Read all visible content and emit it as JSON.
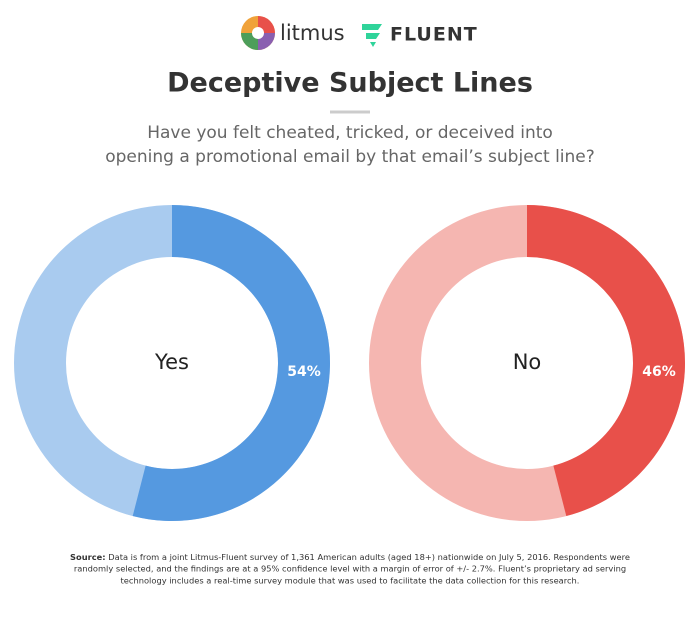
{
  "logos": [
    "litmus",
    "FLUENT"
  ],
  "title": "Deceptive Subject Lines",
  "subtitle": [
    "Have you felt cheated, tricked, or deceived into",
    "opening a promotional email by that email’s subject line?"
  ],
  "chart_data": [
    {
      "type": "donut",
      "label": "Yes",
      "values": [
        54
      ],
      "value_labels": [
        "54%"
      ],
      "color": "#5599e0",
      "ring_color": "#a9cbef"
    },
    {
      "type": "donut",
      "label": "No",
      "values": [
        46
      ],
      "value_labels": [
        "46%"
      ],
      "color": "#e8504a",
      "ring_color": "#f5b6b1"
    }
  ],
  "source": {
    "label": "Source:",
    "lines": [
      "Data is from a joint Litmus-Fluent survey of 1,361 American adults (aged 18+) nationwide on July 5, 2016. Respondents were",
      "randomly selected, and the findings are at a 95% confidence level with a margin of error of +/- 2.7%. Fluent’s proprietary ad serving",
      "technology includes a real-time survey module that was used to facilitate the data collection for this research."
    ]
  }
}
